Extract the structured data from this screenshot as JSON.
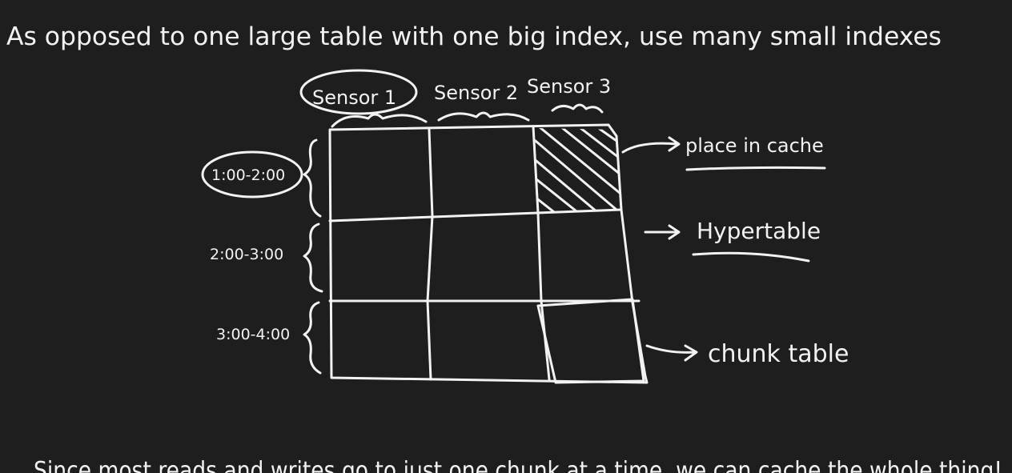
{
  "heading": "As opposed to one large table with one big index, use many small indexes",
  "columns": [
    "Sensor 1",
    "Sensor 2",
    "Sensor 3"
  ],
  "rows": [
    "1:00-2:00",
    "2:00-3:00",
    "3:00-4:00"
  ],
  "annotations": {
    "cache": "place in cache",
    "hypertable": "Hypertable",
    "chunk": "chunk table"
  },
  "footer": "Since most reads and writes go to just one chunk at a time, we can cache the whole thing!"
}
